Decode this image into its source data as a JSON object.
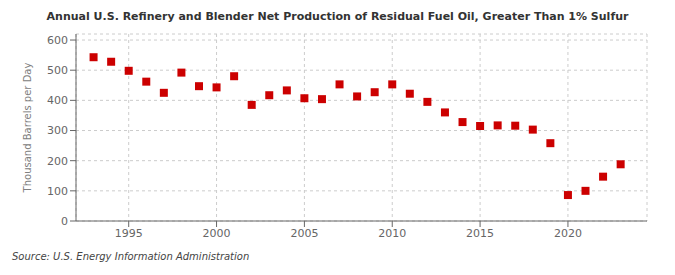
{
  "chart_data": {
    "type": "scatter",
    "title": "Annual U.S. Refinery and Blender Net Production of Residual Fuel Oil, Greater Than 1% Sulfur",
    "ylabel": "Thousand Barrels per Day",
    "source": "Source: U.S. Energy Information Administration",
    "x": [
      1993,
      1994,
      1995,
      1996,
      1997,
      1998,
      1999,
      2000,
      2001,
      2002,
      2003,
      2004,
      2005,
      2006,
      2007,
      2008,
      2009,
      2010,
      2011,
      2012,
      2013,
      2014,
      2015,
      2016,
      2017,
      2018,
      2019,
      2020,
      2021,
      2022,
      2023
    ],
    "values": [
      543,
      528,
      498,
      462,
      425,
      492,
      447,
      443,
      480,
      385,
      417,
      433,
      407,
      404,
      453,
      413,
      427,
      453,
      422,
      395,
      360,
      328,
      315,
      317,
      316,
      303,
      258,
      86,
      100,
      147,
      188
    ],
    "color": "#cc0000",
    "marker": "square",
    "xlim": [
      1992.0,
      2024.5
    ],
    "xticks": [
      1995,
      2000,
      2005,
      2010,
      2015,
      2020
    ],
    "ylim": [
      0,
      620
    ],
    "yticks": [
      0,
      100,
      200,
      300,
      400,
      500,
      600
    ],
    "grid": true
  }
}
